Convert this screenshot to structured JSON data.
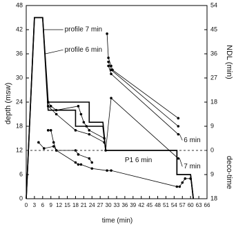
{
  "chart_data": {
    "type": "line",
    "xlabel": "time (min)",
    "ylabel": "depth (msw)",
    "y2label": "NDL (min)",
    "y2label_lower": "deco-time",
    "xlim": [
      0,
      66
    ],
    "xticks": [
      0,
      3,
      6,
      9,
      12,
      15,
      18,
      21,
      24,
      27,
      30,
      33,
      36,
      39,
      42,
      45,
      48,
      51,
      54,
      57,
      60,
      63,
      66
    ],
    "ylim": [
      0,
      48
    ],
    "yticks": [
      0,
      6,
      12,
      18,
      24,
      30,
      36,
      42,
      48
    ],
    "y2lim": [
      -18,
      54
    ],
    "y2ticks": [
      {
        "value": -18,
        "label": "18"
      },
      {
        "value": -9,
        "label": "9"
      },
      0,
      9,
      18,
      27,
      36,
      45,
      54
    ],
    "dashed_y2_zero": true,
    "annotations": [
      "profile 7 min",
      "profile 6 min",
      "6 min",
      "7 min",
      "P1 6 min"
    ],
    "series": [
      {
        "name": "profile 7 min",
        "color": "#000000",
        "x": [
          0,
          3,
          6,
          8,
          23,
          23,
          28,
          29,
          55,
          55,
          60,
          61
        ],
        "values": [
          0,
          45,
          45,
          24,
          24,
          19,
          19,
          12,
          12,
          6,
          6,
          0
        ]
      },
      {
        "name": "profile 6 min",
        "color": "#000000",
        "x": [
          0,
          3,
          6,
          8,
          18,
          18,
          28,
          29,
          55,
          55,
          60,
          61
        ],
        "values": [
          0,
          45,
          45,
          22,
          22,
          18,
          18,
          12,
          12,
          6,
          6,
          0
        ]
      },
      {
        "color": "#000000",
        "axis": "y2",
        "x": [
          29.5,
          30,
          31,
          31.5,
          55.5
        ],
        "values": [
          43.5,
          34.5,
          31.5,
          30,
          12
        ]
      },
      {
        "color": "#000000",
        "axis": "y2",
        "x": [
          30,
          31,
          55.5
        ],
        "values": [
          33,
          30,
          9
        ]
      },
      {
        "color": "#000000",
        "axis": "y2",
        "x": [
          30,
          31,
          55.5
        ],
        "values": [
          31.5,
          28.5,
          6
        ]
      },
      {
        "color": "#000000",
        "axis": "y2",
        "x": [
          29,
          31,
          55.5
        ],
        "values": [
          0,
          19.5,
          -3
        ]
      },
      {
        "color": "#000000",
        "axis": "y2",
        "x": [
          8,
          9,
          11,
          19,
          20,
          21,
          22,
          23,
          28.5
        ],
        "values": [
          18,
          16.5,
          15,
          16.5,
          13.5,
          10.5,
          9,
          7.5,
          4.5
        ]
      },
      {
        "color": "#000000",
        "axis": "y2",
        "x": [
          8,
          11,
          18,
          23,
          28.5
        ],
        "values": [
          16.5,
          13.5,
          7.5,
          6,
          3
        ]
      },
      {
        "color": "#000000",
        "axis": "y2",
        "x": [
          4.5,
          6.5,
          10,
          11,
          18,
          19,
          23,
          24
        ],
        "values": [
          3,
          0.75,
          1.5,
          0,
          0,
          -1.5,
          -3,
          -4.5
        ]
      },
      {
        "color": "#000000",
        "axis": "y2",
        "x": [
          8,
          9,
          10,
          11,
          18,
          19,
          20,
          24,
          29.5,
          31,
          55,
          56,
          57,
          58,
          60
        ],
        "values": [
          7.5,
          7.5,
          3,
          0,
          -4.5,
          -5.25,
          -5.25,
          -6.75,
          -7.5,
          -7.5,
          -13.5,
          -13.5,
          -12,
          -10.5,
          -10.5
        ]
      }
    ]
  }
}
